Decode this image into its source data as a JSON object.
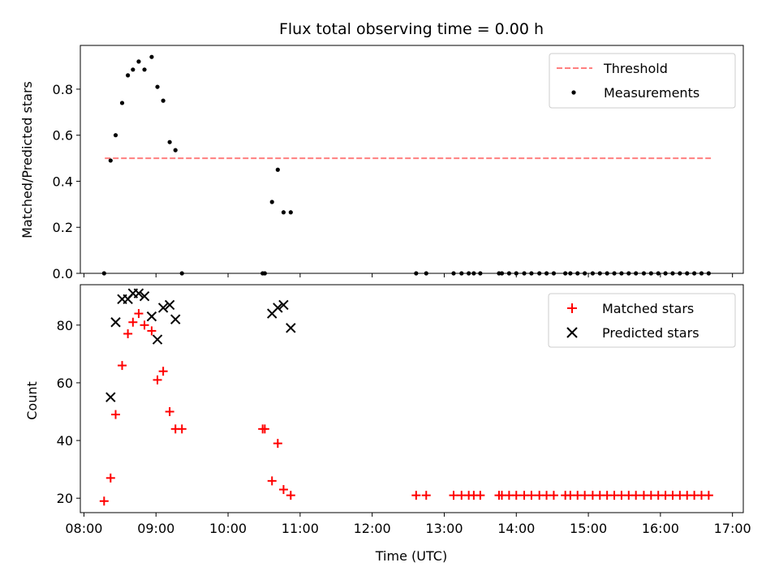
{
  "chart_data": {
    "type": "scatter",
    "title": "Flux total observing time = 0.00 h",
    "xlabel": "Time (UTC)",
    "x_ticks": [
      "08:00",
      "09:00",
      "10:00",
      "11:00",
      "12:00",
      "13:00",
      "14:00",
      "15:00",
      "16:00",
      "17:00"
    ],
    "xlim_hours": [
      7.95,
      17.15
    ],
    "top_panel": {
      "ylabel": "Matched/Predicted stars",
      "ylim": [
        0,
        0.99
      ],
      "y_ticks": [
        "0.0",
        "0.2",
        "0.4",
        "0.6",
        "0.8"
      ],
      "legend_position": "top-right",
      "threshold": {
        "name": "Threshold",
        "value": 0.5,
        "x_start": 8.29,
        "x_end": 16.7,
        "color": "#ff7f7f"
      },
      "measurements": {
        "name": "Measurements",
        "color": "#000000",
        "x": [
          8.28,
          8.37,
          8.44,
          8.53,
          8.61,
          8.68,
          8.76,
          8.84,
          8.94,
          9.02,
          9.1,
          9.19,
          9.27,
          9.36,
          10.48,
          10.51,
          10.61,
          10.69,
          10.77,
          10.87,
          12.61,
          12.75,
          13.13,
          13.24,
          13.34,
          13.41,
          13.5,
          13.76,
          13.8,
          13.9,
          14.0,
          14.11,
          14.21,
          14.32,
          14.42,
          14.52,
          14.68,
          14.75,
          14.85,
          14.95,
          15.06,
          15.16,
          15.26,
          15.36,
          15.46,
          15.56,
          15.66,
          15.77,
          15.87,
          15.97,
          16.07,
          16.17,
          16.27,
          16.37,
          16.47,
          16.57,
          16.67
        ],
        "y": [
          0.0,
          0.49,
          0.6,
          0.74,
          0.86,
          0.885,
          0.92,
          0.885,
          0.94,
          0.81,
          0.75,
          0.57,
          0.535,
          0.0,
          0.0,
          0.0,
          0.31,
          0.45,
          0.265,
          0.265,
          0.0,
          0.0,
          0.0,
          0.0,
          0.0,
          0.0,
          0.0,
          0.0,
          0.0,
          0.0,
          0.0,
          0.0,
          0.0,
          0.0,
          0.0,
          0.0,
          0.0,
          0.0,
          0.0,
          0.0,
          0.0,
          0.0,
          0.0,
          0.0,
          0.0,
          0.0,
          0.0,
          0.0,
          0.0,
          0.0,
          0.0,
          0.0,
          0.0,
          0.0,
          0.0,
          0.0,
          0.0
        ]
      }
    },
    "bottom_panel": {
      "ylabel": "Count",
      "ylim": [
        15,
        94
      ],
      "y_ticks": [
        "20",
        "40",
        "60",
        "80"
      ],
      "legend_position": "top-right",
      "matched": {
        "name": "Matched stars",
        "color": "#ff0000",
        "x": [
          8.28,
          8.37,
          8.44,
          8.53,
          8.61,
          8.68,
          8.76,
          8.84,
          8.94,
          9.02,
          9.1,
          9.19,
          9.27,
          9.36,
          10.48,
          10.51,
          10.61,
          10.69,
          10.77,
          10.87,
          12.61,
          12.75,
          13.13,
          13.24,
          13.34,
          13.41,
          13.5,
          13.76,
          13.8,
          13.9,
          14.0,
          14.11,
          14.21,
          14.32,
          14.42,
          14.52,
          14.68,
          14.75,
          14.85,
          14.95,
          15.06,
          15.16,
          15.26,
          15.36,
          15.46,
          15.56,
          15.66,
          15.77,
          15.87,
          15.97,
          16.07,
          16.17,
          16.27,
          16.37,
          16.47,
          16.57,
          16.67
        ],
        "y": [
          19,
          27,
          49,
          66,
          77,
          81,
          84,
          80,
          78,
          61,
          64,
          50,
          44,
          44,
          44,
          44,
          26,
          39,
          23,
          21,
          21,
          21,
          21,
          21,
          21,
          21,
          21,
          21,
          21,
          21,
          21,
          21,
          21,
          21,
          21,
          21,
          21,
          21,
          21,
          21,
          21,
          21,
          21,
          21,
          21,
          21,
          21,
          21,
          21,
          21,
          21,
          21,
          21,
          21,
          21,
          21,
          21
        ]
      },
      "predicted": {
        "name": "Predicted stars",
        "color": "#000000",
        "x": [
          8.37,
          8.44,
          8.53,
          8.61,
          8.68,
          8.76,
          8.84,
          8.94,
          9.02,
          9.1,
          9.19,
          9.27,
          10.61,
          10.69,
          10.77,
          10.87
        ],
        "y": [
          55,
          81,
          89,
          89,
          91,
          91,
          90,
          83,
          75,
          86,
          87,
          82,
          84,
          86,
          87,
          79
        ]
      }
    }
  }
}
